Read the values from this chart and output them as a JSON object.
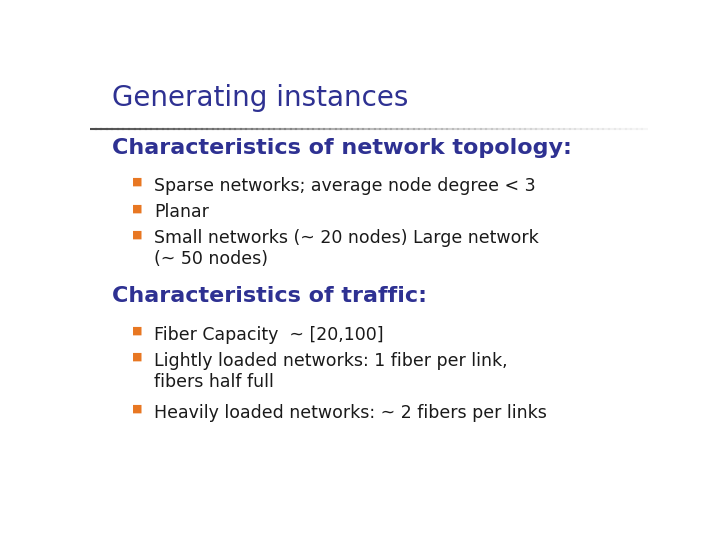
{
  "title": "Generating instances",
  "title_color": "#2E3192",
  "title_fontsize": 20,
  "background_color": "#FFFFFF",
  "heading1": "Characteristics of network topology:",
  "heading1_color": "#2E3192",
  "heading1_fontsize": 16,
  "bullets1": [
    "Sparse networks; average node degree < 3",
    "Planar",
    "Small networks (~ 20 nodes) Large network\n(~ 50 nodes)"
  ],
  "heading2": "Characteristics of traffic:",
  "heading2_color": "#2E3192",
  "heading2_fontsize": 16,
  "bullets2": [
    "Fiber Capacity  ~ [20,100]",
    "Lightly loaded networks: 1 fiber per link,\nfibers half full",
    "Heavily loaded networks: ~ 2 fibers per links"
  ],
  "bullet_color": "#E87722",
  "bullet_fontsize": 12.5,
  "text_color": "#1A1A1A",
  "font_family": "DejaVu Sans"
}
